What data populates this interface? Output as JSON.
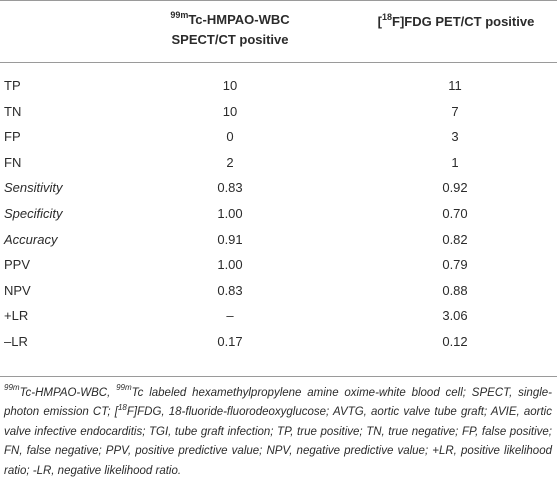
{
  "header": {
    "col1_sup": "99m",
    "col1_line1": "Tc-HMPAO-WBC",
    "col1_line2": "SPECT/CT positive",
    "col2_pre": "[",
    "col2_sup": "18",
    "col2_post": "F]FDG PET/CT positive"
  },
  "rows": [
    {
      "label": "TP",
      "spect": "10",
      "pet": "11"
    },
    {
      "label": "TN",
      "spect": "10",
      "pet": "7"
    },
    {
      "label": "FP",
      "spect": "0",
      "pet": "3"
    },
    {
      "label": "FN",
      "spect": "2",
      "pet": "1"
    },
    {
      "label": "Sensitivity",
      "spect": "0.83",
      "pet": "0.92"
    },
    {
      "label": "Specificity",
      "spect": "1.00",
      "pet": "0.70"
    },
    {
      "label": "Accuracy",
      "spect": "0.91",
      "pet": "0.82"
    },
    {
      "label": "PPV",
      "spect": "1.00",
      "pet": "0.79"
    },
    {
      "label": "NPV",
      "spect": "0.83",
      "pet": "0.88"
    },
    {
      "label": "+LR",
      "spect": "–",
      "pet": "3.06"
    },
    {
      "label": "–LR",
      "spect": "0.17",
      "pet": "0.12"
    }
  ],
  "footnote": {
    "sup1": "99m",
    "t1": "Tc-HMPAO-WBC, ",
    "sup2": "99m",
    "t2": "Tc labeled hexamethylpropylene amine oxime-white blood cell; SPECT, single-photon emission CT; [",
    "sup3": "18",
    "t3": "F]FDG, 18-fluoride-fluorodeoxyglucose; AVTG, aortic valve tube graft; AVIE, aortic valve infective endocarditis; TGI, tube graft infection; TP, true positive; TN, true negative; FP, false positive; FN, false negative; PPV, positive predictive value; NPV, negative predictive value; +LR, positive likelihood ratio; -LR, negative likelihood ratio."
  }
}
